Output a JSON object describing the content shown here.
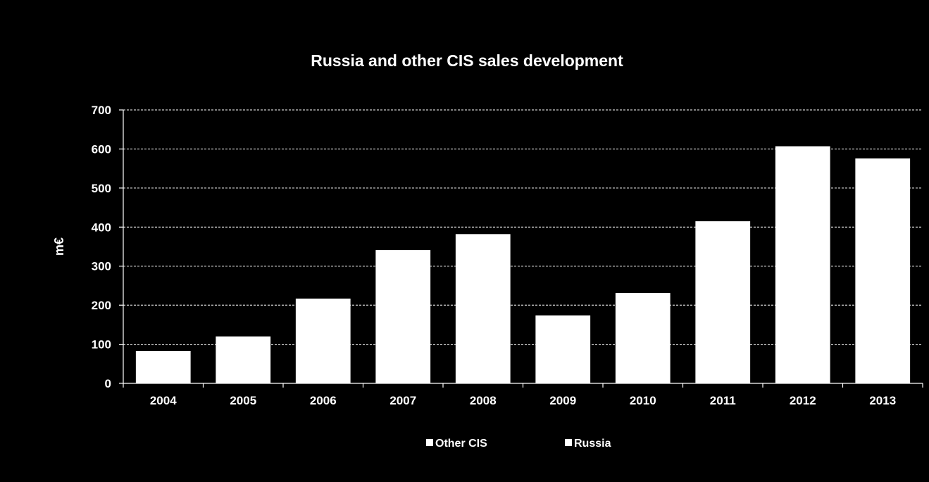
{
  "chart_data": {
    "type": "bar",
    "stacked": true,
    "title": "Russia and other CIS sales development",
    "xlabel": "",
    "ylabel": "m€",
    "categories": [
      "2004",
      "2005",
      "2006",
      "2007",
      "2008",
      "2009",
      "2010",
      "2011",
      "2012",
      "2013"
    ],
    "series": [
      {
        "name": "Other CIS",
        "values": [
          0,
          0,
          0,
          0,
          0,
          0,
          0,
          0,
          0,
          0
        ]
      },
      {
        "name": "Russia",
        "values": [
          83,
          120,
          217,
          341,
          382,
          174,
          231,
          415,
          607,
          576
        ]
      }
    ],
    "ylim": [
      0,
      700
    ],
    "yticks": [
      0,
      100,
      200,
      300,
      400,
      500,
      600,
      700
    ],
    "grid": "horizontal-dashed",
    "legend_position": "bottom",
    "colors": {
      "background": "#000000",
      "bar": "#ffffff",
      "text": "#ffffff",
      "grid": "#ffffff"
    }
  }
}
